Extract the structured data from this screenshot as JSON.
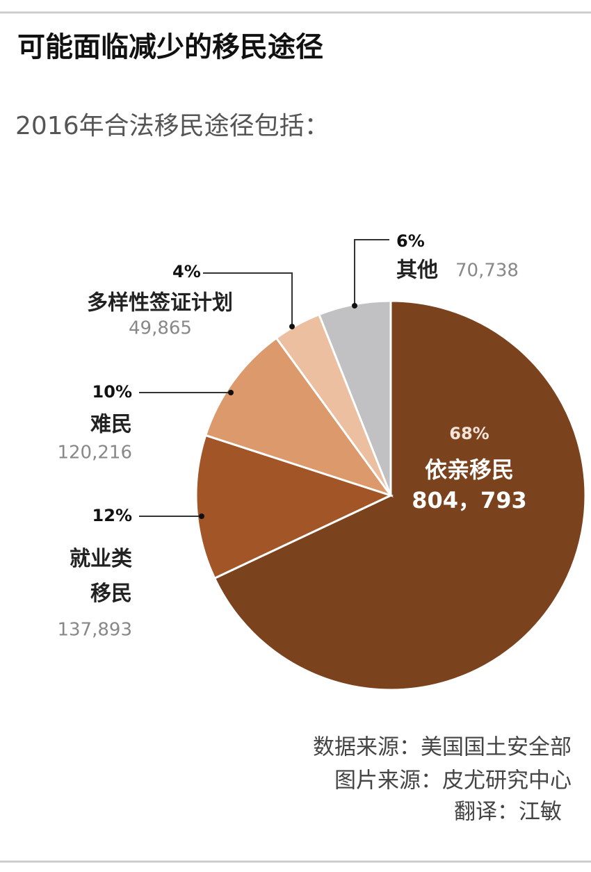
{
  "chart_data": {
    "type": "pie",
    "title": "可能面临减少的移民途径",
    "subtitle": "2016年合法移民途径包括：",
    "categories": [
      "依亲移民",
      "就业类移民",
      "难民",
      "多样性签证计划",
      "其他"
    ],
    "values": [
      68,
      12,
      10,
      4,
      6
    ],
    "value_labels": [
      "68%",
      "12%",
      "10%",
      "4%",
      "6%"
    ],
    "count_labels": [
      "804，793",
      "137,893",
      "120,216",
      "49,865",
      "70,738"
    ],
    "colors": [
      "#7b421e",
      "#a25628",
      "#dc9a6c",
      "#ebbf9f",
      "#c1c1c3"
    ],
    "sources": [
      "数据来源：美国国土安全部",
      "图片来源：皮尤研究中心",
      "翻译：江敏"
    ]
  }
}
